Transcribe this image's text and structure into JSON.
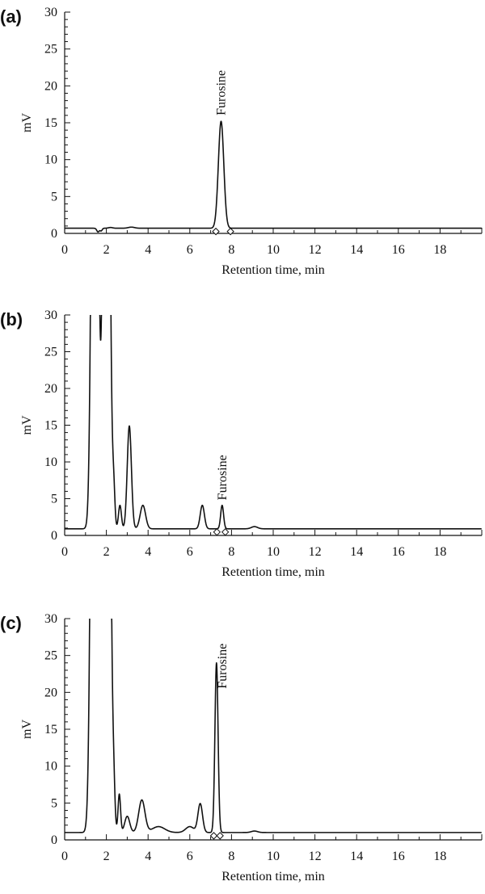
{
  "chart_data": [
    {
      "type": "line",
      "panel_label": "(a)",
      "xlabel": "Retention time, min",
      "ylabel": "mV",
      "xlim": [
        0,
        20
      ],
      "ylim": [
        0,
        30
      ],
      "x_ticks": [
        0,
        2,
        4,
        6,
        8,
        10,
        12,
        14,
        16,
        18
      ],
      "y_ticks": [
        0,
        5,
        10,
        15,
        20,
        25,
        30
      ],
      "baseline": 0.7,
      "features": [
        {
          "center": 1.6,
          "height": -0.5,
          "width": 0.06
        },
        {
          "center": 1.75,
          "height": -0.35,
          "width": 0.05
        },
        {
          "center": 2.2,
          "height": 0.1,
          "width": 0.1
        },
        {
          "center": 3.2,
          "height": 0.15,
          "width": 0.15
        },
        {
          "center": 7.5,
          "height": 14.5,
          "width": 0.13
        }
      ],
      "markers_x": [
        7.25,
        7.95
      ],
      "annotation": {
        "text": "Furosine",
        "x": 7.5,
        "y": 16.0
      }
    },
    {
      "type": "line",
      "panel_label": "(b)",
      "xlabel": "Retention time, min",
      "ylabel": "mV",
      "xlim": [
        0,
        20
      ],
      "ylim": [
        0,
        30
      ],
      "x_ticks": [
        0,
        2,
        4,
        6,
        8,
        10,
        12,
        14,
        16,
        18
      ],
      "y_ticks": [
        0,
        5,
        10,
        15,
        20,
        25,
        30
      ],
      "baseline": 0.9,
      "features": [
        {
          "center": 1.45,
          "height": 120,
          "width": 0.13
        },
        {
          "center": 2.0,
          "height": 120,
          "width": 0.13
        },
        {
          "center": 2.35,
          "height": 5,
          "width": 0.06
        },
        {
          "center": 2.65,
          "height": 3.2,
          "width": 0.07
        },
        {
          "center": 3.1,
          "height": 14,
          "width": 0.1
        },
        {
          "center": 3.75,
          "height": 3.2,
          "width": 0.13
        },
        {
          "center": 6.6,
          "height": 3.2,
          "width": 0.1
        },
        {
          "center": 7.55,
          "height": 3.2,
          "width": 0.07
        },
        {
          "center": 9.1,
          "height": 0.3,
          "width": 0.15
        }
      ],
      "markers_x": [
        7.3,
        7.7
      ],
      "annotation": {
        "text": "Furosine",
        "x": 7.55,
        "y": 4.8
      }
    },
    {
      "type": "line",
      "panel_label": "(c)",
      "xlabel": "Retention time, min",
      "ylabel": "mV",
      "xlim": [
        0,
        20
      ],
      "ylim": [
        0,
        30
      ],
      "x_ticks": [
        0,
        2,
        4,
        6,
        8,
        10,
        12,
        14,
        16,
        18
      ],
      "y_ticks": [
        0,
        5,
        10,
        15,
        20,
        25,
        30
      ],
      "baseline": 1.0,
      "features": [
        {
          "center": 1.45,
          "height": 150,
          "width": 0.14
        },
        {
          "center": 2.0,
          "height": 150,
          "width": 0.14
        },
        {
          "center": 2.35,
          "height": 5,
          "width": 0.06
        },
        {
          "center": 2.62,
          "height": 5.2,
          "width": 0.06
        },
        {
          "center": 3.0,
          "height": 2.2,
          "width": 0.12
        },
        {
          "center": 3.7,
          "height": 4.4,
          "width": 0.15
        },
        {
          "center": 4.5,
          "height": 0.8,
          "width": 0.3
        },
        {
          "center": 6.0,
          "height": 0.8,
          "width": 0.2
        },
        {
          "center": 6.5,
          "height": 3.9,
          "width": 0.11
        },
        {
          "center": 7.28,
          "height": 23,
          "width": 0.075
        },
        {
          "center": 9.1,
          "height": 0.2,
          "width": 0.15
        }
      ],
      "markers_x": [
        7.15,
        7.45
      ],
      "annotation": {
        "text": "Furosine",
        "x": 7.55,
        "y": 20.5
      }
    }
  ]
}
